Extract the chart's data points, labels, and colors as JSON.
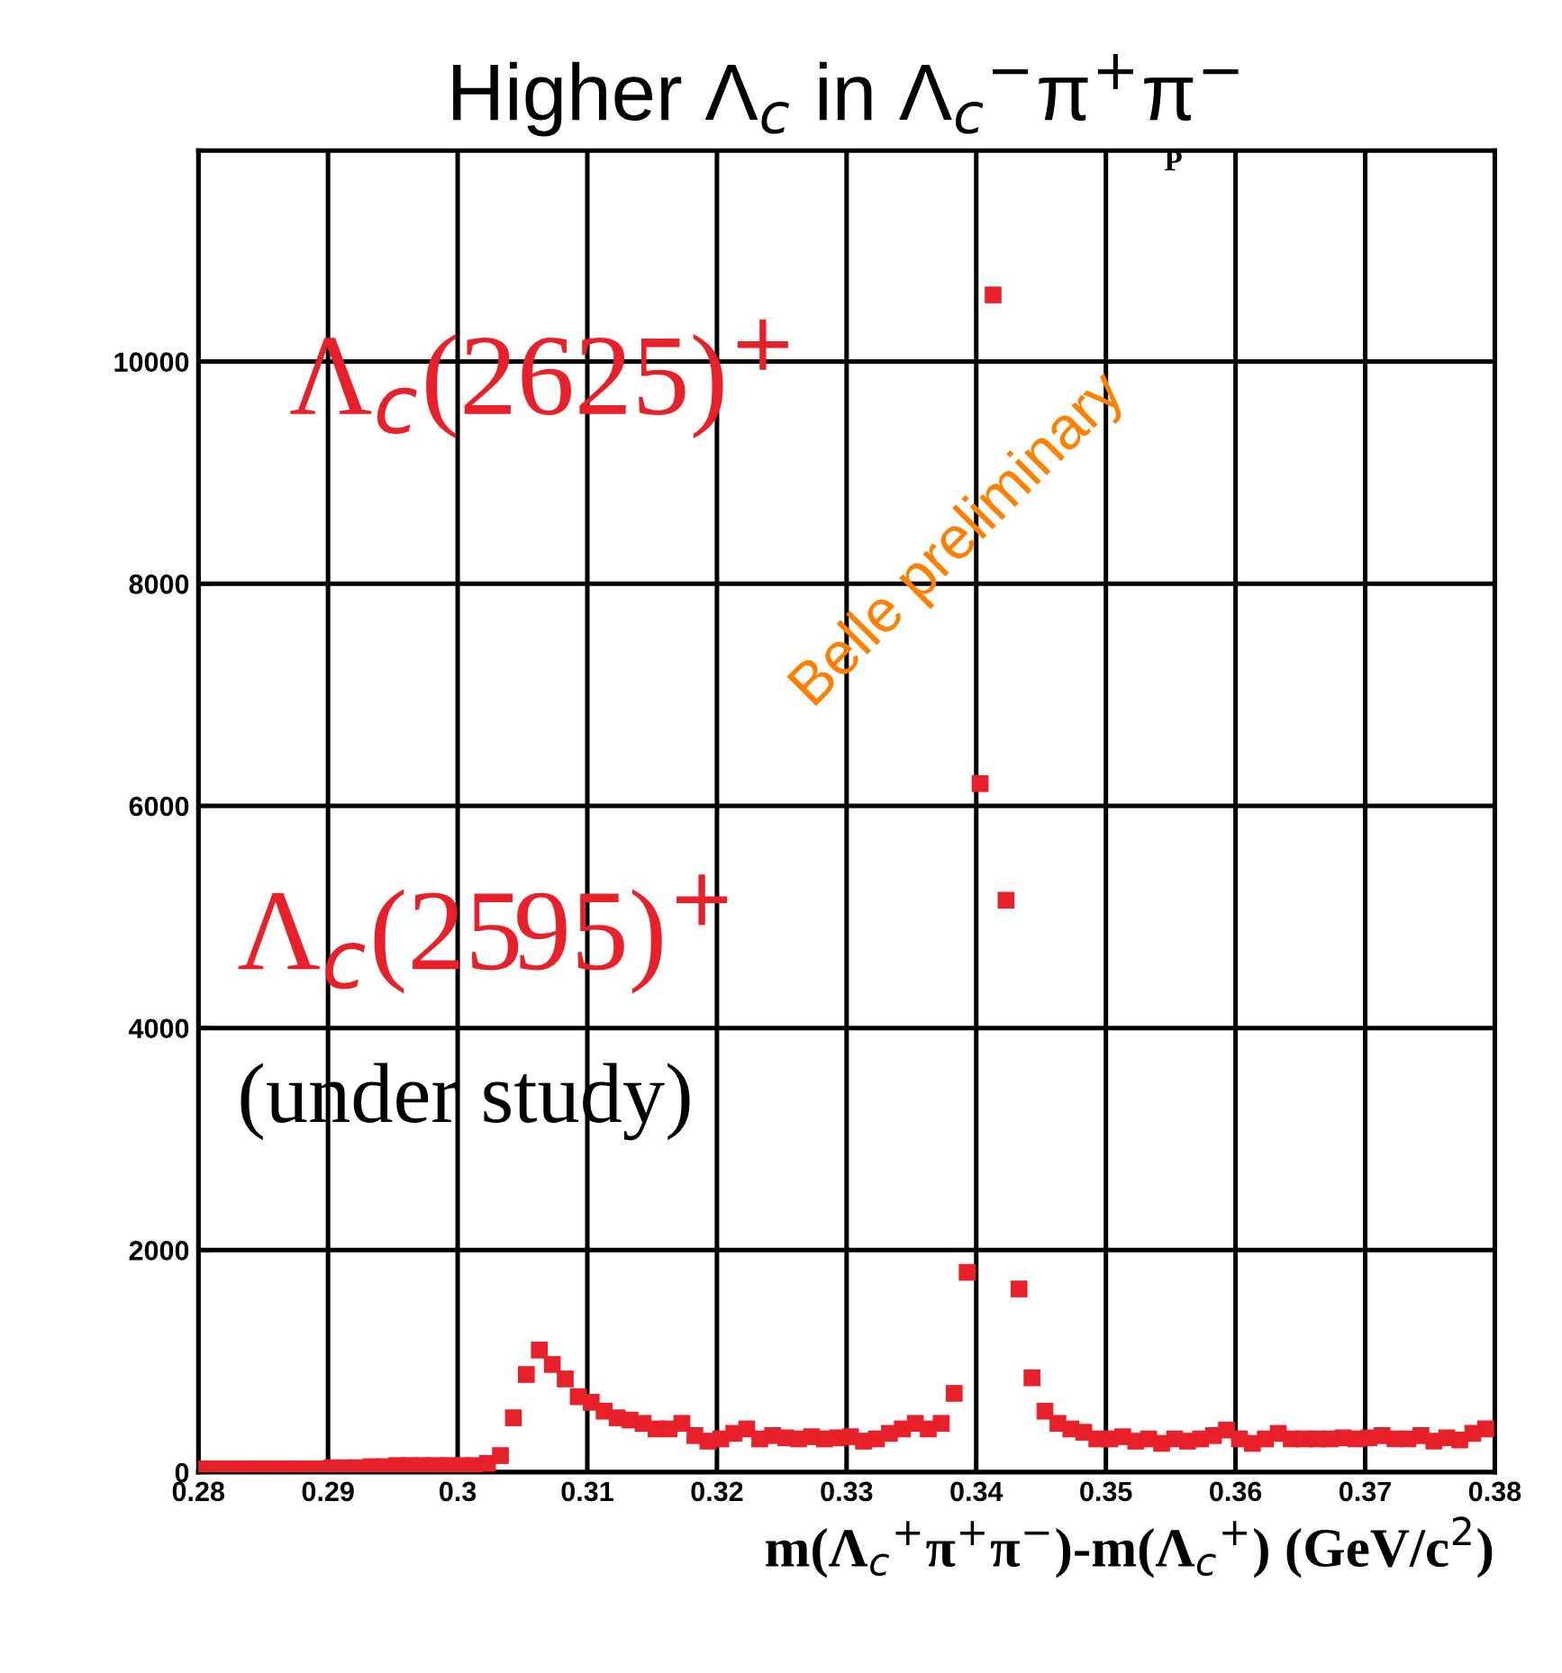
{
  "chart_data": {
    "type": "scatter",
    "title": "Higher Λ$_{c}$ in Λ$_{c}$$^{−}$π$^{+}$π$^{−}$",
    "xlabel": "m(Λ$_{c}$$^{+}$π$^{+}$π$^{−}$)-m(Λ$_{c}$$^{+}$) (GeV/c$^{2}$)",
    "annotations": [
      "Λ$_{c}$(2625)$^{+}$",
      "Λ$_{c}$(2595)$^{+}$",
      "(under study)",
      "Belle preliminary",
      "P"
    ],
    "x": [
      0.2803,
      0.2813,
      0.2823,
      0.2833,
      0.2843,
      0.2853,
      0.2863,
      0.2873,
      0.2883,
      0.2893,
      0.2903,
      0.2913,
      0.2923,
      0.2933,
      0.2943,
      0.2953,
      0.2963,
      0.2973,
      0.2983,
      0.2993,
      0.3003,
      0.3013,
      0.3023,
      0.3033,
      0.3043,
      0.3053,
      0.3063,
      0.3073,
      0.3083,
      0.3093,
      0.3103,
      0.3113,
      0.3123,
      0.3133,
      0.3143,
      0.3153,
      0.3163,
      0.3173,
      0.3183,
      0.3193,
      0.3203,
      0.3213,
      0.3223,
      0.3233,
      0.3243,
      0.3253,
      0.3263,
      0.3273,
      0.3283,
      0.3293,
      0.3303,
      0.3313,
      0.3323,
      0.3333,
      0.3343,
      0.3353,
      0.3363,
      0.3373,
      0.3383,
      0.3393,
      0.3403,
      0.3413,
      0.3423,
      0.3433,
      0.3443,
      0.3453,
      0.3463,
      0.3473,
      0.3483,
      0.3493,
      0.3503,
      0.3513,
      0.3523,
      0.3533,
      0.3543,
      0.3553,
      0.3563,
      0.3573,
      0.3583,
      0.3593,
      0.3603,
      0.3613,
      0.3623,
      0.3633,
      0.3643,
      0.3653,
      0.3663,
      0.3673,
      0.3683,
      0.3693,
      0.3703,
      0.3713,
      0.3723,
      0.3733,
      0.3743,
      0.3753,
      0.3763,
      0.3773,
      0.3783,
      0.3793
    ],
    "series": [
      {
        "color": "#e8202a",
        "values": [
          30,
          30,
          30,
          30,
          30,
          30,
          30,
          30,
          30,
          30,
          40,
          40,
          40,
          50,
          50,
          60,
          60,
          60,
          60,
          60,
          60,
          60,
          80,
          150,
          490,
          880,
          1100,
          970,
          840,
          680,
          630,
          550,
          490,
          470,
          440,
          390,
          390,
          440,
          330,
          280,
          300,
          350,
          390,
          300,
          330,
          310,
          300,
          320,
          300,
          310,
          320,
          280,
          300,
          350,
          390,
          440,
          390,
          440,
          710,
          1800,
          6200,
          10600,
          5150,
          1650,
          850,
          550,
          440,
          390,
          360,
          300,
          300,
          320,
          280,
          300,
          260,
          300,
          280,
          300,
          330,
          380,
          300,
          260,
          300,
          350,
          300,
          300,
          300,
          300,
          310,
          300,
          310,
          330,
          300,
          300,
          330,
          280,
          310,
          290,
          350,
          390
        ]
      }
    ],
    "xlim": [
      0.28,
      0.38
    ],
    "ylim": [
      0,
      11900
    ],
    "xticks": [
      0.28,
      0.29,
      0.3,
      0.31,
      0.32,
      0.33,
      0.34,
      0.35,
      0.36,
      0.37,
      0.38
    ],
    "yticks": [
      0,
      2000,
      4000,
      6000,
      8000,
      10000
    ],
    "grid": true,
    "marker": "square"
  }
}
